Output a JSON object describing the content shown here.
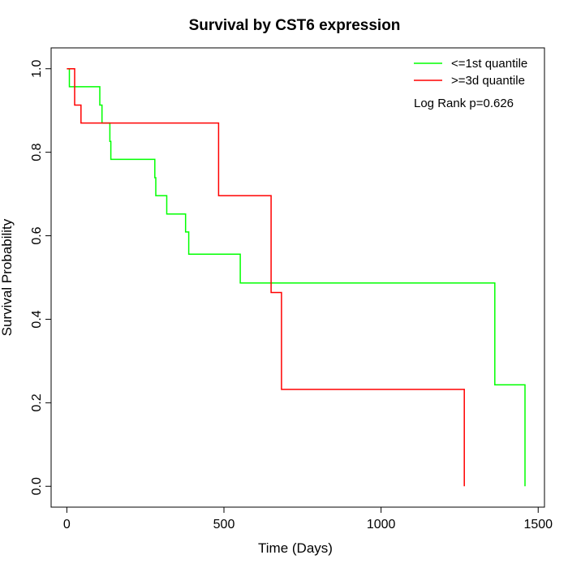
{
  "chart_data": {
    "type": "line",
    "title": "Survival by CST6 expression",
    "xlabel": "Time (Days)",
    "ylabel": "Survival Probability",
    "xlim": [
      -50,
      1520
    ],
    "ylim": [
      -0.05,
      1.05
    ],
    "x_ticks": [
      0,
      500,
      1000,
      1500
    ],
    "x_tick_labels": [
      "0",
      "500",
      "1000",
      "1500"
    ],
    "y_ticks": [
      0.0,
      0.2,
      0.4,
      0.6,
      0.8,
      1.0
    ],
    "y_tick_labels": [
      "0.0",
      "0.2",
      "0.4",
      "0.6",
      "0.8",
      "1.0"
    ],
    "grid": false,
    "legend_position": "top-right",
    "annotation": "Log Rank p=0.626",
    "series": [
      {
        "name": "<=1st quantile",
        "color": "#00ff00",
        "steps": [
          [
            0,
            1.0
          ],
          [
            8,
            0.957
          ],
          [
            105,
            0.913
          ],
          [
            112,
            0.87
          ],
          [
            137,
            0.826
          ],
          [
            140,
            0.783
          ],
          [
            280,
            0.739
          ],
          [
            283,
            0.696
          ],
          [
            318,
            0.652
          ],
          [
            378,
            0.609
          ],
          [
            388,
            0.556
          ],
          [
            552,
            0.487
          ],
          [
            1362,
            0.243
          ],
          [
            1458,
            0.0
          ]
        ],
        "end_x": 1458
      },
      {
        "name": ">=3d quantile",
        "color": "#ff0000",
        "steps": [
          [
            0,
            1.0
          ],
          [
            25,
            0.913
          ],
          [
            45,
            0.87
          ],
          [
            483,
            0.696
          ],
          [
            650,
            0.464
          ],
          [
            683,
            0.232
          ],
          [
            1265,
            0.0
          ]
        ],
        "end_x": 1265
      }
    ]
  }
}
